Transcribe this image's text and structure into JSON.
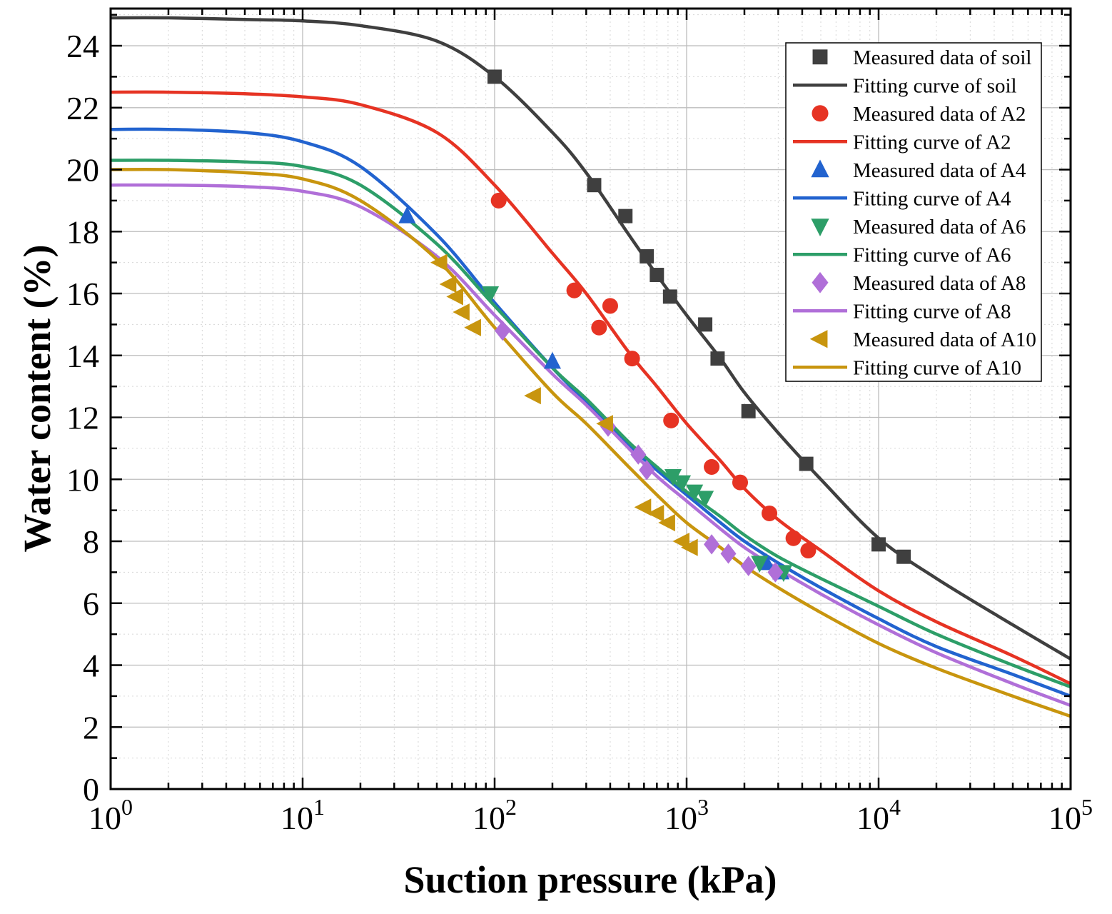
{
  "figure": {
    "background": "#ffffff",
    "frame_color": "#000000",
    "grid_major_color": "#bdbdbd",
    "grid_minor_color": "#d6d6d6"
  },
  "chart_data": {
    "type": "line",
    "title": "",
    "xlabel": "Suction pressure (kPa)",
    "ylabel": "Water content (%)",
    "x_scale": "log",
    "xlim": [
      1,
      100000
    ],
    "ylim": [
      0,
      25.2
    ],
    "x_ticks_exp": [
      0,
      1,
      2,
      3,
      4,
      5
    ],
    "y_ticks": [
      0,
      2,
      4,
      6,
      8,
      10,
      12,
      14,
      16,
      18,
      20,
      22,
      24
    ],
    "grid": "both",
    "legend_position": "top-right",
    "curve_x": [
      1,
      2,
      5,
      10,
      20,
      50,
      100,
      200,
      300,
      500,
      700,
      1000,
      1500,
      2000,
      3000,
      5000,
      10000,
      20000,
      50000,
      100000
    ],
    "series": [
      {
        "name": "soil",
        "color": "#3f3f3f",
        "marker": "square",
        "measured_label": "Measured data of soil",
        "fit_label": "Fitting curve of soil",
        "measured": {
          "x": [
            100,
            330,
            480,
            620,
            700,
            820,
            1250,
            1450,
            2100,
            4200,
            10000,
            13500
          ],
          "y": [
            23.0,
            19.5,
            18.5,
            17.2,
            16.6,
            15.9,
            15.0,
            13.9,
            12.2,
            10.5,
            7.9,
            7.5
          ]
        },
        "curve_y": [
          24.9,
          24.9,
          24.85,
          24.8,
          24.65,
          24.15,
          23.0,
          21.2,
          19.9,
          17.9,
          16.6,
          15.3,
          13.9,
          12.8,
          11.5,
          10.0,
          8.1,
          6.8,
          5.3,
          4.2
        ]
      },
      {
        "name": "A2",
        "color": "#e63323",
        "marker": "circle",
        "measured_label": "Measured data of A2",
        "fit_label": "Fitting curve of A2",
        "measured": {
          "x": [
            105,
            260,
            350,
            400,
            520,
            830,
            1350,
            1900,
            2700,
            3600,
            4300
          ],
          "y": [
            19.0,
            16.1,
            14.9,
            15.6,
            13.9,
            11.9,
            10.4,
            9.9,
            8.9,
            8.1,
            7.7
          ]
        },
        "curve_y": [
          22.5,
          22.5,
          22.45,
          22.35,
          22.1,
          21.2,
          19.5,
          17.3,
          16.0,
          14.1,
          13.0,
          11.8,
          10.6,
          9.7,
          8.7,
          7.7,
          6.4,
          5.4,
          4.3,
          3.4
        ]
      },
      {
        "name": "A4",
        "color": "#2263cf",
        "marker": "triangle-up",
        "measured_label": "Measured data of A4",
        "fit_label": "Fitting curve of A4",
        "measured": {
          "x": [
            35,
            200,
            2600,
            3100
          ],
          "y": [
            18.5,
            13.8,
            7.3,
            7.0
          ]
        },
        "curve_y": [
          21.3,
          21.3,
          21.2,
          20.9,
          20.1,
          17.9,
          15.7,
          13.6,
          12.5,
          11.1,
          10.3,
          9.5,
          8.6,
          8.0,
          7.3,
          6.5,
          5.5,
          4.6,
          3.7,
          3.0
        ]
      },
      {
        "name": "A6",
        "color": "#2d9e68",
        "marker": "triangle-down",
        "measured_label": "Measured data of A6",
        "fit_label": "Fitting curve of A6",
        "measured": {
          "x": [
            95,
            850,
            950,
            1100,
            1250,
            2400,
            3200
          ],
          "y": [
            16.0,
            10.1,
            9.9,
            9.6,
            9.4,
            7.3,
            7.0
          ]
        },
        "curve_y": [
          20.3,
          20.3,
          20.25,
          20.1,
          19.5,
          17.6,
          15.6,
          13.6,
          12.6,
          11.2,
          10.4,
          9.6,
          8.8,
          8.2,
          7.5,
          6.8,
          5.9,
          5.0,
          4.0,
          3.3
        ]
      },
      {
        "name": "A8",
        "color": "#b06fd8",
        "marker": "diamond",
        "measured_label": "Measured data of A8",
        "fit_label": "Fitting curve of A8",
        "measured": {
          "x": [
            110,
            390,
            560,
            620,
            1350,
            1650,
            2100,
            2900
          ],
          "y": [
            14.8,
            11.7,
            10.8,
            10.3,
            7.9,
            7.6,
            7.2,
            7.0
          ]
        },
        "curve_y": [
          19.5,
          19.5,
          19.45,
          19.3,
          18.8,
          17.2,
          15.3,
          13.4,
          12.4,
          11.0,
          10.1,
          9.3,
          8.4,
          7.8,
          7.1,
          6.3,
          5.3,
          4.4,
          3.4,
          2.7
        ]
      },
      {
        "name": "A10",
        "color": "#c8950e",
        "marker": "triangle-left",
        "measured_label": "Measured data of A10",
        "fit_label": "Fitting curve of A10",
        "measured": {
          "x": [
            52,
            58,
            63,
            68,
            78,
            160,
            380,
            600,
            700,
            800,
            950,
            1050
          ],
          "y": [
            17.0,
            16.3,
            15.9,
            15.4,
            14.9,
            12.7,
            11.8,
            9.1,
            8.9,
            8.6,
            8.0,
            7.8
          ]
        },
        "curve_y": [
          20.0,
          20.0,
          19.9,
          19.7,
          19.0,
          17.1,
          14.9,
          12.8,
          11.8,
          10.4,
          9.5,
          8.6,
          7.8,
          7.2,
          6.5,
          5.7,
          4.7,
          3.9,
          3.0,
          2.35
        ]
      }
    ]
  }
}
